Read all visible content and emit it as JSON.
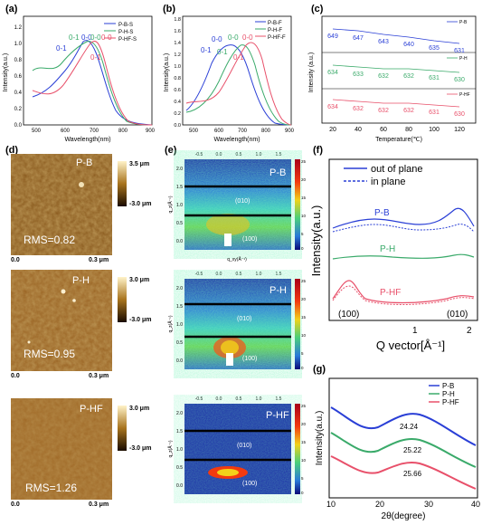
{
  "panels": {
    "a": {
      "label": "(a)",
      "xlabel": "Wavelength(nm)",
      "ylabel": "Intensity(a.u.)",
      "xticks": [
        "500",
        "600",
        "700",
        "800",
        "900"
      ],
      "yticks": [
        "0.0",
        "0.2",
        "0.4",
        "0.6",
        "0.8",
        "1.0",
        "1.2"
      ],
      "legend": [
        "P-B-S",
        "P-H-S",
        "P-HF-S"
      ],
      "annotations": {
        "ann1": "0-1",
        "ann2": "0-1",
        "ann3": "0-0",
        "ann4": "0-0",
        "ann5": "0-0",
        "ann6": "0-1"
      }
    },
    "b": {
      "label": "(b)",
      "xlabel": "Wavelength(nm)",
      "ylabel": "Intensity(a.u.)",
      "xticks": [
        "500",
        "600",
        "700",
        "800",
        "900"
      ],
      "yticks": [
        "0.0",
        "0.2",
        "0.4",
        "0.6",
        "0.8",
        "1.0",
        "1.2",
        "1.4",
        "1.6",
        "1.8"
      ],
      "legend": [
        "P-B-F",
        "P-H-F",
        "P-HF-F"
      ],
      "annotations": {
        "ann1": "0-1",
        "ann2": "0-0",
        "ann3": "0-1",
        "ann4": "0-0",
        "ann5": "0-0",
        "ann6": "0-1"
      }
    },
    "c": {
      "label": "(c)",
      "xlabel": "Temperature(℃)",
      "ylabel": "Intensity (a.u.)",
      "xticks": [
        "20",
        "40",
        "60",
        "80",
        "100",
        "120"
      ],
      "legend": [
        "P-B",
        "P-H",
        "P-HF"
      ],
      "rows": [
        {
          "name": "P-B",
          "values": [
            "649",
            "647",
            "643",
            "640",
            "635",
            "631"
          ]
        },
        {
          "name": "P-H",
          "values": [
            "634",
            "633",
            "632",
            "632",
            "631",
            "630"
          ]
        },
        {
          "name": "P-HF",
          "values": [
            "634",
            "632",
            "632",
            "632",
            "631",
            "630"
          ]
        }
      ]
    },
    "d": {
      "label": "(d)",
      "images": [
        {
          "tag": "P-B",
          "rms": "RMS=0.82",
          "scale_top": "3.5 μm",
          "scale_bottom": "-3.0 μm",
          "x0": "0.0",
          "x1": "0.3 μm"
        },
        {
          "tag": "P-H",
          "rms": "RMS=0.95",
          "scale_top": "3.0 μm",
          "scale_bottom": "-3.0 μm",
          "x0": "0.0",
          "x1": "0.3 μm"
        },
        {
          "tag": "P-HF",
          "rms": "RMS=1.26",
          "scale_top": "3.0 μm",
          "scale_bottom": "-3.0 μm",
          "x0": "0.0",
          "x1": "0.3 μm"
        }
      ]
    },
    "e": {
      "label": "(e)",
      "images": [
        {
          "tag": "P-B",
          "peak1": "(010)",
          "peak2": "(100)"
        },
        {
          "tag": "P-H",
          "peak1": "(010)",
          "peak2": "(100)"
        },
        {
          "tag": "P-HF",
          "peak1": "(010)",
          "peak2": "(100)"
        }
      ],
      "qticks": [
        "-0.5",
        "0.0",
        "0.5",
        "1.0",
        "1.5"
      ],
      "qzticks": [
        "2.0",
        "1.5",
        "1.0",
        "0.5",
        "0.0"
      ],
      "xlabel": "q_xy(Å⁻¹)",
      "ylabel": "q_z(Å⁻¹)",
      "cbar_ticks": [
        "25",
        "20",
        "15",
        "10",
        "5",
        "0"
      ]
    },
    "f": {
      "label": "(f)",
      "legend": [
        "out of plane",
        "in plane"
      ],
      "series_labels": [
        "P-B",
        "P-H",
        "P-HF"
      ],
      "peak_labels": [
        "(100)",
        "(010)"
      ],
      "xlabel": "Q vector[Å⁻¹]",
      "ylabel": "Intensity(a.u.)",
      "xticks": [
        "1",
        "2"
      ]
    },
    "g": {
      "label": "(g)",
      "legend": [
        "P-B",
        "P-H",
        "P-HF"
      ],
      "peaks": [
        "24.24",
        "25.22",
        "25.66"
      ],
      "xlabel": "2θ(degree)",
      "ylabel": "Intensity(a.u.)",
      "xticks": [
        "10",
        "20",
        "30",
        "40"
      ]
    }
  },
  "colors": {
    "blue": "#2a3fd6",
    "green": "#3aaa6a",
    "red": "#e8506a"
  }
}
